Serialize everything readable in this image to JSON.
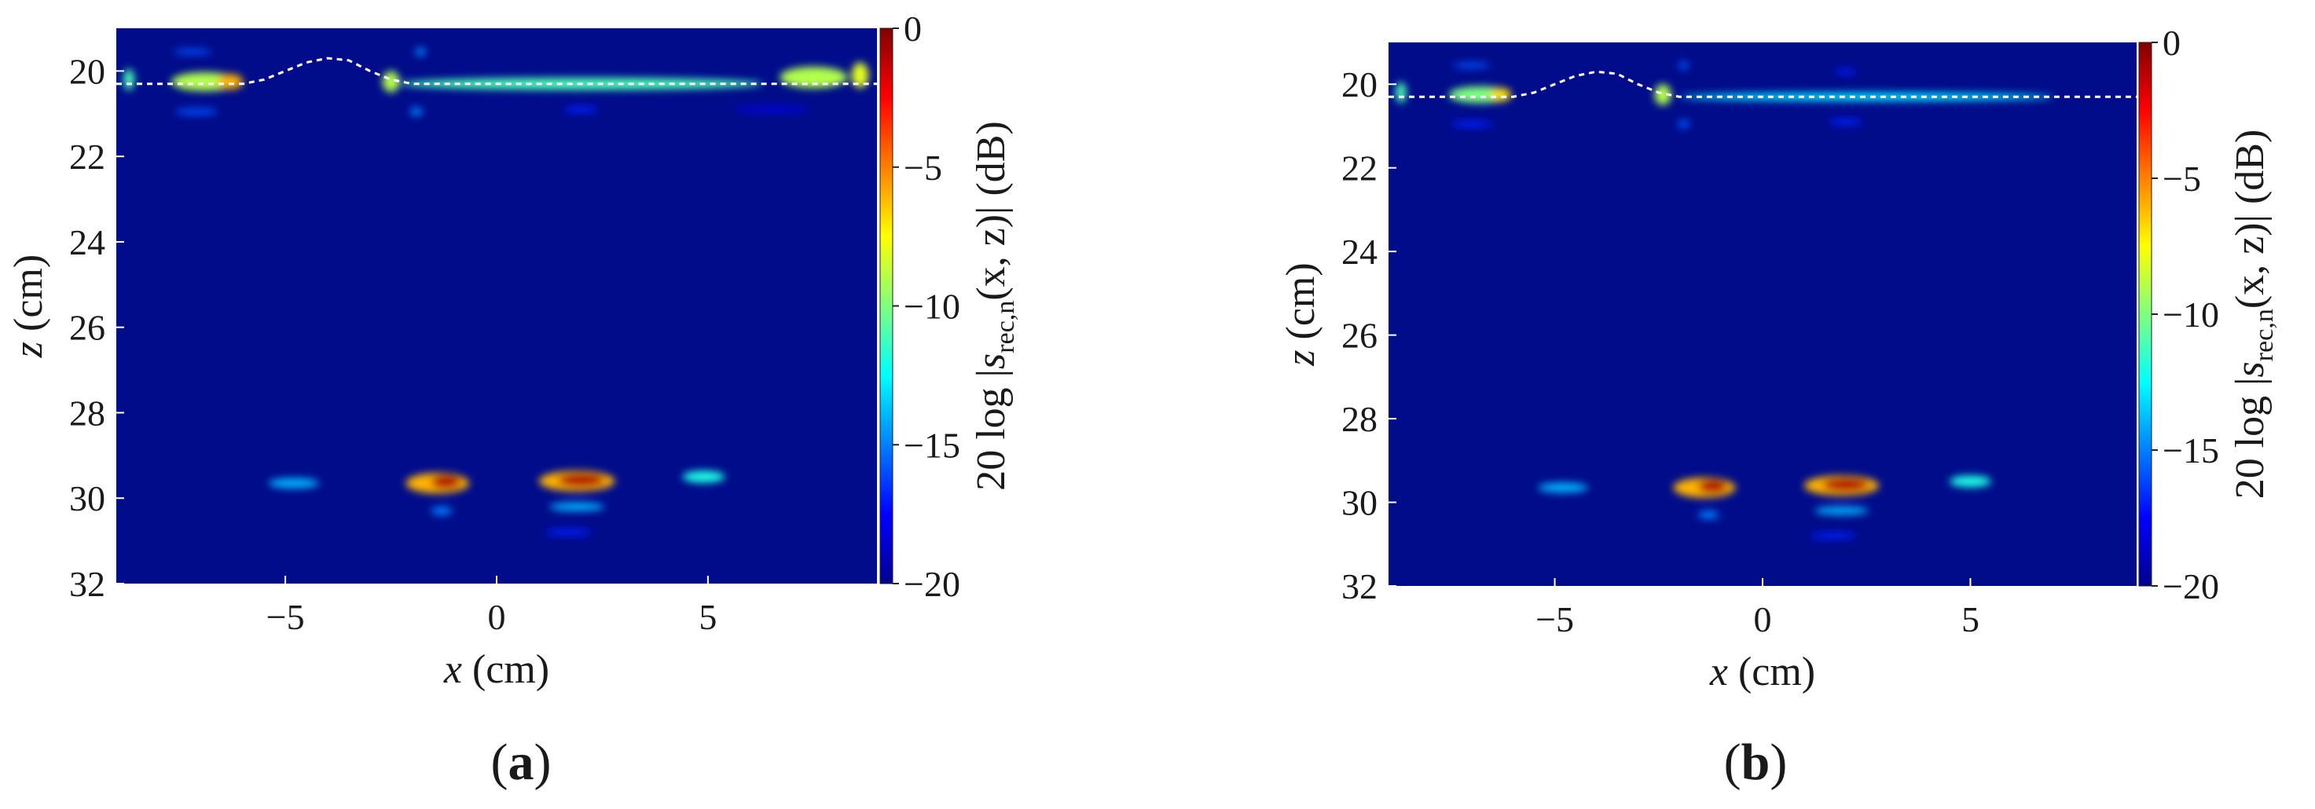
{
  "figure": {
    "panels": [
      "a",
      "b"
    ]
  },
  "chart_data": [
    {
      "type": "heatmap",
      "panel_label": "a",
      "xlabel_var": "x",
      "xlabel_unit": " (cm)",
      "ylabel_var": "z",
      "ylabel_unit": " (cm)",
      "xlim": [
        -9,
        9
      ],
      "ylim": [
        32,
        19
      ],
      "xticks": [
        {
          "v": -5,
          "label": "−5"
        },
        {
          "v": 0,
          "label": "0"
        },
        {
          "v": 5,
          "label": "5"
        }
      ],
      "yticks": [
        {
          "v": 20,
          "label": "20"
        },
        {
          "v": 22,
          "label": "22"
        },
        {
          "v": 24,
          "label": "24"
        },
        {
          "v": 26,
          "label": "26"
        },
        {
          "v": 28,
          "label": "28"
        },
        {
          "v": 30,
          "label": "30"
        },
        {
          "v": 32,
          "label": "32"
        }
      ],
      "colorbar": {
        "range": [
          -20,
          0
        ],
        "ticks": [
          {
            "v": 0,
            "label": "0"
          },
          {
            "v": -5,
            "label": "−5"
          },
          {
            "v": -10,
            "label": "−10"
          },
          {
            "v": -15,
            "label": "−15"
          },
          {
            "v": -20,
            "label": "−20"
          }
        ],
        "label_prefix": "20 log |",
        "label_var": "s",
        "label_sub": "rec,n",
        "label_suffix": "(x, z)| (dB)",
        "colormap": "jet"
      },
      "background_color": "#000c8a",
      "surface_profile": {
        "style": "dashed-white",
        "points": [
          [
            -9,
            20.3
          ],
          [
            -7,
            20.3
          ],
          [
            -6,
            20.3
          ],
          [
            -5.5,
            20.2
          ],
          [
            -5,
            20.0
          ],
          [
            -4.5,
            19.8
          ],
          [
            -4,
            19.7
          ],
          [
            -3.5,
            19.75
          ],
          [
            -3,
            20.0
          ],
          [
            -2.5,
            20.2
          ],
          [
            -2,
            20.3
          ],
          [
            0,
            20.3
          ],
          [
            5,
            20.3
          ],
          [
            9,
            20.3
          ]
        ]
      },
      "blobs": [
        {
          "x": -6.9,
          "z": 20.25,
          "w": 1.6,
          "h": 0.22,
          "db": -9
        },
        {
          "x": -6.3,
          "z": 20.25,
          "w": 0.6,
          "h": 0.18,
          "db": -6
        },
        {
          "x": -8.7,
          "z": 20.2,
          "w": 0.25,
          "h": 0.25,
          "db": -11
        },
        {
          "x": -7.2,
          "z": 19.55,
          "w": 0.9,
          "h": 0.07,
          "db": -16
        },
        {
          "x": -7.1,
          "z": 20.95,
          "w": 1.0,
          "h": 0.08,
          "db": -16
        },
        {
          "x": -2.5,
          "z": 20.25,
          "w": 0.4,
          "h": 0.25,
          "db": -9
        },
        {
          "x": 2.0,
          "z": 20.3,
          "w": 8.6,
          "h": 0.14,
          "db": -11
        },
        {
          "x": 7.5,
          "z": 20.15,
          "w": 1.6,
          "h": 0.25,
          "db": -9
        },
        {
          "x": 8.6,
          "z": 20.1,
          "w": 0.4,
          "h": 0.3,
          "db": -8
        },
        {
          "x": -1.8,
          "z": 19.55,
          "w": 0.25,
          "h": 0.1,
          "db": -15
        },
        {
          "x": -1.9,
          "z": 20.95,
          "w": 0.3,
          "h": 0.1,
          "db": -15
        },
        {
          "x": 2.0,
          "z": 20.9,
          "w": 0.8,
          "h": 0.08,
          "db": -17
        },
        {
          "x": 6.5,
          "z": 20.9,
          "w": 1.8,
          "h": 0.07,
          "db": -18
        },
        {
          "x": -4.8,
          "z": 29.65,
          "w": 1.2,
          "h": 0.12,
          "db": -14
        },
        {
          "x": -1.4,
          "z": 29.65,
          "w": 1.5,
          "h": 0.24,
          "db": -6
        },
        {
          "x": -1.2,
          "z": 29.62,
          "w": 0.7,
          "h": 0.16,
          "db": -1
        },
        {
          "x": -1.3,
          "z": 30.3,
          "w": 0.5,
          "h": 0.1,
          "db": -15
        },
        {
          "x": 1.9,
          "z": 29.6,
          "w": 1.8,
          "h": 0.24,
          "db": -6
        },
        {
          "x": 2.0,
          "z": 29.58,
          "w": 1.1,
          "h": 0.16,
          "db": -1
        },
        {
          "x": 1.9,
          "z": 30.2,
          "w": 1.3,
          "h": 0.1,
          "db": -14
        },
        {
          "x": 1.7,
          "z": 30.8,
          "w": 1.1,
          "h": 0.08,
          "db": -17
        },
        {
          "x": 4.9,
          "z": 29.5,
          "w": 1.0,
          "h": 0.14,
          "db": -12
        }
      ]
    },
    {
      "type": "heatmap",
      "panel_label": "b",
      "xlabel_var": "x",
      "xlabel_unit": " (cm)",
      "ylabel_var": "z",
      "ylabel_unit": " (cm)",
      "xlim": [
        -9,
        9
      ],
      "ylim": [
        32,
        19
      ],
      "xticks": [
        {
          "v": -5,
          "label": "−5"
        },
        {
          "v": 0,
          "label": "0"
        },
        {
          "v": 5,
          "label": "5"
        }
      ],
      "yticks": [
        {
          "v": 20,
          "label": "20"
        },
        {
          "v": 22,
          "label": "22"
        },
        {
          "v": 24,
          "label": "24"
        },
        {
          "v": 26,
          "label": "26"
        },
        {
          "v": 28,
          "label": "28"
        },
        {
          "v": 30,
          "label": "30"
        },
        {
          "v": 32,
          "label": "32"
        }
      ],
      "colorbar": {
        "range": [
          -20,
          0
        ],
        "ticks": [
          {
            "v": 0,
            "label": "0"
          },
          {
            "v": -5,
            "label": "−5"
          },
          {
            "v": -10,
            "label": "−10"
          },
          {
            "v": -15,
            "label": "−15"
          },
          {
            "v": -20,
            "label": "−20"
          }
        ],
        "label_prefix": "20 log |",
        "label_var": "s",
        "label_sub": "rec,n",
        "label_suffix": "(x, z)| (dB)",
        "colormap": "jet"
      },
      "background_color": "#000c8a",
      "surface_profile": {
        "style": "dashed-white",
        "points": [
          [
            -9,
            20.3
          ],
          [
            -7,
            20.3
          ],
          [
            -6,
            20.3
          ],
          [
            -5.5,
            20.2
          ],
          [
            -5,
            20.0
          ],
          [
            -4.5,
            19.8
          ],
          [
            -4,
            19.7
          ],
          [
            -3.5,
            19.75
          ],
          [
            -3,
            20.0
          ],
          [
            -2.5,
            20.2
          ],
          [
            -2,
            20.3
          ],
          [
            0,
            20.3
          ],
          [
            5,
            20.3
          ],
          [
            9,
            20.3
          ]
        ]
      },
      "blobs": [
        {
          "x": -6.8,
          "z": 20.25,
          "w": 1.5,
          "h": 0.2,
          "db": -10
        },
        {
          "x": -6.3,
          "z": 20.25,
          "w": 0.5,
          "h": 0.16,
          "db": -7
        },
        {
          "x": -8.7,
          "z": 20.2,
          "w": 0.25,
          "h": 0.25,
          "db": -11
        },
        {
          "x": -7.0,
          "z": 19.55,
          "w": 0.9,
          "h": 0.07,
          "db": -16
        },
        {
          "x": -7.0,
          "z": 20.95,
          "w": 1.0,
          "h": 0.08,
          "db": -17
        },
        {
          "x": -2.4,
          "z": 20.25,
          "w": 0.4,
          "h": 0.25,
          "db": -9
        },
        {
          "x": 2.5,
          "z": 20.3,
          "w": 9.0,
          "h": 0.1,
          "db": -13
        },
        {
          "x": -1.9,
          "z": 19.55,
          "w": 0.25,
          "h": 0.1,
          "db": -16
        },
        {
          "x": -1.9,
          "z": 20.95,
          "w": 0.3,
          "h": 0.1,
          "db": -16
        },
        {
          "x": 2.0,
          "z": 19.7,
          "w": 0.5,
          "h": 0.07,
          "db": -17
        },
        {
          "x": 2.0,
          "z": 20.9,
          "w": 0.8,
          "h": 0.08,
          "db": -17
        },
        {
          "x": -4.8,
          "z": 29.65,
          "w": 1.2,
          "h": 0.12,
          "db": -14
        },
        {
          "x": -1.4,
          "z": 29.65,
          "w": 1.5,
          "h": 0.24,
          "db": -6
        },
        {
          "x": -1.2,
          "z": 29.62,
          "w": 0.7,
          "h": 0.16,
          "db": -1
        },
        {
          "x": -1.3,
          "z": 30.3,
          "w": 0.5,
          "h": 0.1,
          "db": -15
        },
        {
          "x": 1.9,
          "z": 29.6,
          "w": 1.8,
          "h": 0.24,
          "db": -6
        },
        {
          "x": 2.0,
          "z": 29.58,
          "w": 1.1,
          "h": 0.16,
          "db": -1
        },
        {
          "x": 1.9,
          "z": 30.2,
          "w": 1.3,
          "h": 0.1,
          "db": -14
        },
        {
          "x": 1.7,
          "z": 30.8,
          "w": 1.1,
          "h": 0.08,
          "db": -17
        },
        {
          "x": 5.0,
          "z": 29.5,
          "w": 1.0,
          "h": 0.14,
          "db": -12
        }
      ]
    }
  ]
}
